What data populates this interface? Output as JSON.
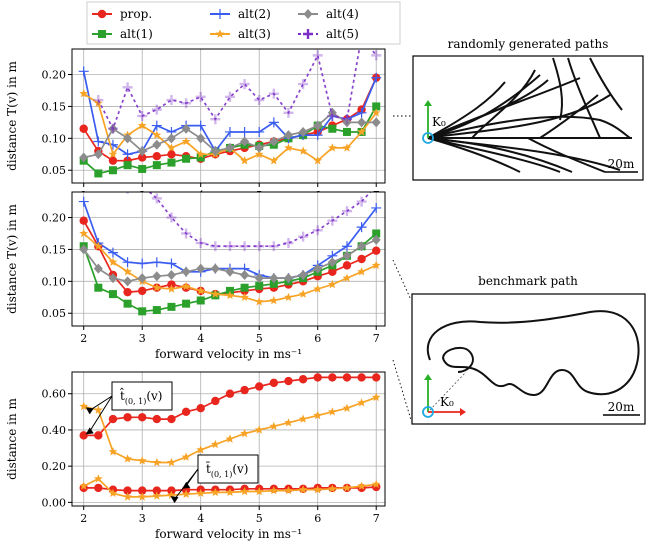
{
  "legend": [
    {
      "key": "prop",
      "label": "prop."
    },
    {
      "key": "alt1",
      "label": "alt(1)"
    },
    {
      "key": "alt2",
      "label": "alt(2)"
    },
    {
      "key": "alt3",
      "label": "alt(3)"
    },
    {
      "key": "alt4",
      "label": "alt(4)"
    },
    {
      "key": "alt5",
      "label": "alt(5)"
    }
  ],
  "styles": {
    "prop": {
      "color": "#e8261d",
      "marker": "circle"
    },
    "alt1": {
      "color": "#2ba02b",
      "marker": "square"
    },
    "alt2": {
      "color": "#3a5df0",
      "marker": "plus"
    },
    "alt3": {
      "color": "#f7a326",
      "marker": "star"
    },
    "alt4": {
      "color": "#8c8c8c",
      "marker": "diamond"
    },
    "alt5": {
      "color": "#7b2fc9",
      "marker": "plus-bold",
      "dashed": true
    }
  },
  "panels": {
    "random_title": "randomly generated paths",
    "benchmark_title": "benchmark path",
    "k0_label": "K₀",
    "scale_label": "20m"
  },
  "chart_data": [
    {
      "type": "line",
      "xlim": [
        1.8,
        7.15
      ],
      "ylim": [
        0.03,
        0.24
      ],
      "yticks": [
        0.05,
        0.1,
        0.15,
        0.2
      ],
      "xticks": [
        2,
        3,
        4,
        5,
        6,
        7
      ],
      "ylabel": "distance T(v) in m",
      "xlabel": "",
      "grid": true,
      "series": [
        {
          "key": "prop",
          "x": [
            2,
            2.25,
            2.5,
            2.75,
            3,
            3.25,
            3.5,
            3.75,
            4,
            4.25,
            4.5,
            4.75,
            5,
            5.25,
            5.5,
            5.75,
            6,
            6.25,
            6.5,
            6.75,
            7
          ],
          "y": [
            0.115,
            0.08,
            0.065,
            0.065,
            0.07,
            0.072,
            0.075,
            0.072,
            0.068,
            0.075,
            0.08,
            0.085,
            0.09,
            0.095,
            0.1,
            0.105,
            0.11,
            0.12,
            0.13,
            0.145,
            0.195
          ]
        },
        {
          "key": "alt1",
          "x": [
            2,
            2.25,
            2.5,
            2.75,
            3,
            3.25,
            3.5,
            3.75,
            4,
            4.25,
            4.5,
            4.75,
            5,
            5.25,
            5.5,
            5.75,
            6,
            6.25,
            6.5,
            6.75,
            7
          ],
          "y": [
            0.065,
            0.045,
            0.05,
            0.058,
            0.052,
            0.058,
            0.062,
            0.068,
            0.07,
            0.08,
            0.085,
            0.09,
            0.088,
            0.09,
            0.1,
            0.105,
            0.12,
            0.115,
            0.11,
            0.11,
            0.15
          ]
        },
        {
          "key": "alt2",
          "x": [
            2,
            2.25,
            2.5,
            2.75,
            3,
            3.25,
            3.5,
            3.75,
            4,
            4.25,
            4.5,
            4.75,
            5,
            5.25,
            5.5,
            5.75,
            6,
            6.25,
            6.5,
            6.75,
            7
          ],
          "y": [
            0.205,
            0.095,
            0.09,
            0.075,
            0.08,
            0.12,
            0.11,
            0.12,
            0.12,
            0.08,
            0.11,
            0.11,
            0.11,
            0.125,
            0.1,
            0.105,
            0.105,
            0.135,
            0.13,
            0.14,
            0.195
          ]
        },
        {
          "key": "alt3",
          "x": [
            2,
            2.25,
            2.5,
            2.75,
            3,
            3.25,
            3.5,
            3.75,
            4,
            4.25,
            4.5,
            4.75,
            5,
            5.25,
            5.5,
            5.75,
            6,
            6.25,
            6.5,
            6.75,
            7
          ],
          "y": [
            0.17,
            0.155,
            0.075,
            0.105,
            0.12,
            0.105,
            0.085,
            0.095,
            0.075,
            0.075,
            0.085,
            0.065,
            0.075,
            0.065,
            0.085,
            0.08,
            0.065,
            0.085,
            0.085,
            0.11,
            0.14
          ]
        },
        {
          "key": "alt4",
          "x": [
            2,
            2.25,
            2.5,
            2.75,
            3,
            3.25,
            3.5,
            3.75,
            4,
            4.25,
            4.5,
            4.75,
            5,
            5.25,
            5.5,
            5.75,
            6,
            6.25,
            6.5,
            6.75,
            7
          ],
          "y": [
            0.07,
            0.075,
            0.115,
            0.1,
            0.08,
            0.09,
            0.1,
            0.115,
            0.1,
            0.08,
            0.085,
            0.095,
            0.085,
            0.095,
            0.105,
            0.11,
            0.12,
            0.14,
            0.125,
            0.125,
            0.125
          ]
        },
        {
          "key": "alt5",
          "x": [
            2.25,
            2.5,
            2.75,
            3,
            3.25,
            3.5,
            3.75,
            4,
            4.25,
            4.5,
            4.75,
            5,
            5.25,
            5.5,
            5.75,
            6,
            6.25,
            6.5,
            6.75,
            7
          ],
          "y": [
            0.16,
            0.115,
            0.18,
            0.135,
            0.145,
            0.16,
            0.155,
            0.165,
            0.13,
            0.165,
            0.185,
            0.16,
            0.17,
            0.14,
            0.185,
            0.23,
            0.135,
            0.13,
            0.26,
            0.23
          ]
        }
      ]
    },
    {
      "type": "line",
      "xlim": [
        1.8,
        7.15
      ],
      "ylim": [
        0.03,
        0.24
      ],
      "yticks": [
        0.05,
        0.1,
        0.15,
        0.2
      ],
      "xticks": [
        2,
        3,
        4,
        5,
        6,
        7
      ],
      "ylabel": "distance T(v) in m",
      "xlabel": "forward velocity in ms⁻¹",
      "grid": true,
      "series": [
        {
          "key": "prop",
          "x": [
            2,
            2.25,
            2.5,
            2.75,
            3,
            3.25,
            3.5,
            3.75,
            4,
            4.25,
            4.5,
            4.75,
            5,
            5.25,
            5.5,
            5.75,
            6,
            6.25,
            6.5,
            6.75,
            7
          ],
          "y": [
            0.195,
            0.155,
            0.11,
            0.083,
            0.085,
            0.09,
            0.095,
            0.09,
            0.085,
            0.08,
            0.082,
            0.085,
            0.088,
            0.09,
            0.095,
            0.1,
            0.108,
            0.115,
            0.125,
            0.135,
            0.148
          ]
        },
        {
          "key": "alt1",
          "x": [
            2,
            2.25,
            2.5,
            2.75,
            3,
            3.25,
            3.5,
            3.75,
            4,
            4.25,
            4.5,
            4.75,
            5,
            5.25,
            5.5,
            5.75,
            6,
            6.25,
            6.5,
            6.75,
            7
          ],
          "y": [
            0.155,
            0.09,
            0.08,
            0.065,
            0.053,
            0.055,
            0.06,
            0.065,
            0.07,
            0.078,
            0.085,
            0.09,
            0.093,
            0.096,
            0.1,
            0.105,
            0.115,
            0.125,
            0.14,
            0.155,
            0.175
          ]
        },
        {
          "key": "alt2",
          "x": [
            2,
            2.25,
            2.5,
            2.75,
            3,
            3.25,
            3.5,
            3.75,
            4,
            4.25,
            4.5,
            4.75,
            5,
            5.25,
            5.5,
            5.75,
            6,
            6.25,
            6.5,
            6.75,
            7
          ],
          "y": [
            0.225,
            0.16,
            0.145,
            0.13,
            0.128,
            0.13,
            0.128,
            0.115,
            0.115,
            0.12,
            0.12,
            0.12,
            0.11,
            0.105,
            0.105,
            0.11,
            0.125,
            0.14,
            0.155,
            0.185,
            0.215
          ]
        },
        {
          "key": "alt3",
          "x": [
            2,
            2.25,
            2.5,
            2.75,
            3,
            3.25,
            3.5,
            3.75,
            4,
            4.25,
            4.5,
            4.75,
            5,
            5.25,
            5.5,
            5.75,
            6,
            6.25,
            6.5,
            6.75,
            7
          ],
          "y": [
            0.175,
            0.155,
            0.13,
            0.115,
            0.1,
            0.09,
            0.088,
            0.092,
            0.085,
            0.08,
            0.078,
            0.075,
            0.068,
            0.07,
            0.075,
            0.08,
            0.088,
            0.095,
            0.105,
            0.115,
            0.125
          ]
        },
        {
          "key": "alt4",
          "x": [
            2,
            2.25,
            2.5,
            2.75,
            3,
            3.25,
            3.5,
            3.75,
            4,
            4.25,
            4.5,
            4.75,
            5,
            5.25,
            5.5,
            5.75,
            6,
            6.25,
            6.5,
            6.75,
            7
          ],
          "y": [
            0.15,
            0.12,
            0.105,
            0.1,
            0.105,
            0.108,
            0.11,
            0.115,
            0.12,
            0.12,
            0.115,
            0.11,
            0.105,
            0.105,
            0.105,
            0.11,
            0.12,
            0.13,
            0.14,
            0.155,
            0.165
          ]
        },
        {
          "key": "alt5",
          "x": [
            2.5,
            2.75,
            3,
            3.25,
            3.5,
            3.75,
            4,
            4.25,
            4.5,
            4.75,
            5,
            5.25,
            5.5,
            5.75,
            6,
            6.25,
            6.5,
            6.75,
            7
          ],
          "y": [
            0.26,
            0.245,
            0.25,
            0.23,
            0.2,
            0.175,
            0.16,
            0.155,
            0.155,
            0.155,
            0.155,
            0.155,
            0.16,
            0.17,
            0.18,
            0.195,
            0.21,
            0.225,
            0.25
          ]
        }
      ]
    },
    {
      "type": "line",
      "xlim": [
        1.8,
        7.15
      ],
      "ylim": [
        -0.02,
        0.72
      ],
      "yticks": [
        0.0,
        0.2,
        0.4,
        0.6
      ],
      "xticks": [
        2,
        3,
        4,
        5,
        6,
        7
      ],
      "ylabel": "distance in m",
      "xlabel": "forward velocity in ms⁻¹",
      "grid": true,
      "annotations": [
        {
          "text_main": "t̂",
          "text_sub": "(0, 1)",
          "text_tail": "(v)"
        },
        {
          "text_main": "t̄",
          "text_sub": "(0, 1)",
          "text_tail": "(v)"
        }
      ],
      "series": [
        {
          "key": "prop",
          "x": [
            2,
            2.25,
            2.5,
            2.75,
            3,
            3.25,
            3.5,
            3.75,
            4,
            4.25,
            4.5,
            4.75,
            5,
            5.25,
            5.5,
            5.75,
            6,
            6.25,
            6.5,
            6.75,
            7
          ],
          "y": [
            0.37,
            0.37,
            0.46,
            0.47,
            0.47,
            0.46,
            0.46,
            0.5,
            0.52,
            0.56,
            0.6,
            0.62,
            0.64,
            0.66,
            0.67,
            0.68,
            0.69,
            0.69,
            0.69,
            0.69,
            0.69
          ]
        },
        {
          "key": "alt3",
          "x": [
            2,
            2.25,
            2.5,
            2.75,
            3,
            3.25,
            3.5,
            3.75,
            4,
            4.25,
            4.5,
            4.75,
            5,
            5.25,
            5.5,
            5.75,
            6,
            6.25,
            6.5,
            6.75,
            7
          ],
          "y": [
            0.53,
            0.51,
            0.28,
            0.24,
            0.23,
            0.22,
            0.22,
            0.25,
            0.29,
            0.32,
            0.35,
            0.38,
            0.4,
            0.42,
            0.44,
            0.46,
            0.48,
            0.5,
            0.52,
            0.55,
            0.58
          ]
        },
        {
          "key": "prop",
          "x": [
            2,
            2.25,
            2.5,
            2.75,
            3,
            3.25,
            3.5,
            3.75,
            4,
            4.25,
            4.5,
            4.75,
            5,
            5.25,
            5.5,
            5.75,
            6,
            6.25,
            6.5,
            6.75,
            7
          ],
          "y": [
            0.08,
            0.08,
            0.07,
            0.065,
            0.065,
            0.065,
            0.065,
            0.07,
            0.07,
            0.07,
            0.07,
            0.075,
            0.075,
            0.075,
            0.075,
            0.075,
            0.08,
            0.08,
            0.08,
            0.08,
            0.085
          ]
        },
        {
          "key": "alt3",
          "x": [
            2,
            2.25,
            2.5,
            2.75,
            3,
            3.25,
            3.5,
            3.75,
            4,
            4.25,
            4.5,
            4.75,
            5,
            5.25,
            5.5,
            5.75,
            6,
            6.25,
            6.5,
            6.75,
            7
          ],
          "y": [
            0.09,
            0.13,
            0.05,
            0.03,
            0.03,
            0.035,
            0.04,
            0.045,
            0.05,
            0.055,
            0.055,
            0.06,
            0.06,
            0.065,
            0.065,
            0.07,
            0.07,
            0.075,
            0.08,
            0.09,
            0.1
          ]
        }
      ]
    }
  ]
}
